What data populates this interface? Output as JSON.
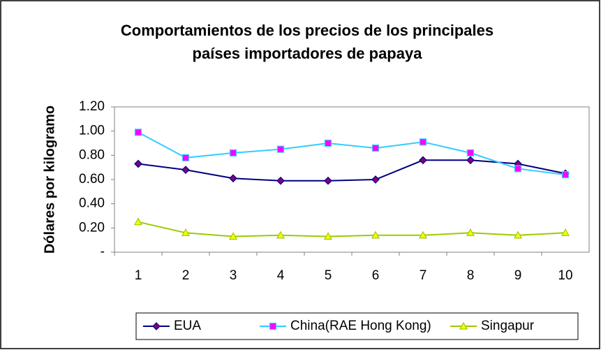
{
  "chart_data": {
    "type": "line",
    "title": [
      "Comportamientos de los precios de los principales",
      "países importadores de papaya"
    ],
    "y_label": "Dólares por kilogramo",
    "categories": [
      "1",
      "2",
      "3",
      "4",
      "5",
      "6",
      "7",
      "8",
      "9",
      "10"
    ],
    "series": [
      {
        "name": "EUA",
        "color": "#000080",
        "marker": "diamond",
        "marker_color": "#800080",
        "values": [
          0.73,
          0.68,
          0.61,
          0.59,
          0.59,
          0.6,
          0.76,
          0.76,
          0.73,
          0.65
        ]
      },
      {
        "name": "China(RAE Hong Kong)",
        "color": "#33ccff",
        "marker": "square",
        "marker_color": "#ff00ff",
        "values": [
          0.99,
          0.78,
          0.82,
          0.85,
          0.9,
          0.86,
          0.91,
          0.82,
          0.69,
          0.64
        ]
      },
      {
        "name": "Singapur",
        "color": "#99cc00",
        "marker": "triangle",
        "marker_color": "#ffff00",
        "values": [
          0.25,
          0.16,
          0.13,
          0.14,
          0.13,
          0.14,
          0.14,
          0.16,
          0.14,
          0.16
        ]
      }
    ],
    "ylim": [
      0,
      1.2
    ],
    "yticks": [
      {
        "value": 0,
        "label": "-"
      },
      {
        "value": 0.2,
        "label": "0.20"
      },
      {
        "value": 0.4,
        "label": "0.40"
      },
      {
        "value": 0.6,
        "label": "0.60"
      },
      {
        "value": 0.8,
        "label": "0.80"
      },
      {
        "value": 1.0,
        "label": "1.00"
      },
      {
        "value": 1.2,
        "label": "1.20"
      }
    ],
    "grid": false,
    "legend": "bottom"
  }
}
